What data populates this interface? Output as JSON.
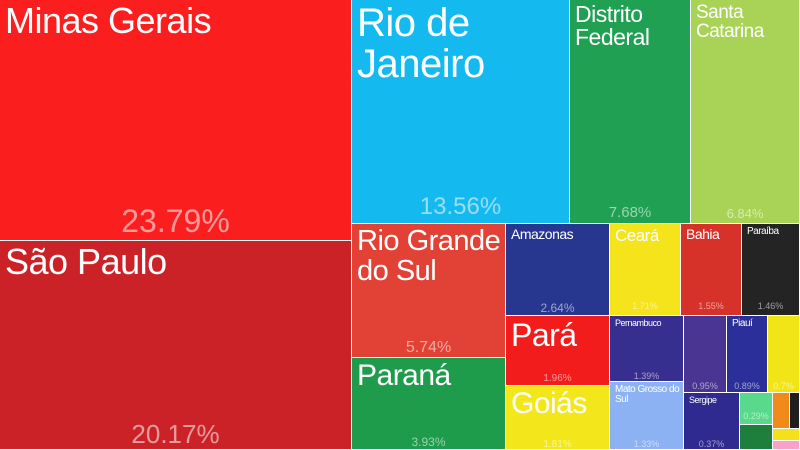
{
  "chart_data": {
    "type": "treemap",
    "title": "",
    "items": [
      {
        "name": "Minas Gerais",
        "label": "23.79%",
        "value": 23.79,
        "color": "#fa1e1e"
      },
      {
        "name": "São Paulo",
        "label": "20.17%",
        "value": 20.17,
        "color": "#cb2227"
      },
      {
        "name": "Rio de Janeiro",
        "label": "13.56%",
        "value": 13.56,
        "color": "#14b9f0"
      },
      {
        "name": "Distrito Federal",
        "label": "7.68%",
        "value": 7.68,
        "color": "#1fa052"
      },
      {
        "name": "Santa Catarina",
        "label": "6.84%",
        "value": 6.84,
        "color": "#a8d356"
      },
      {
        "name": "Rio Grande do Sul",
        "label": "5.74%",
        "value": 5.74,
        "color": "#e24235"
      },
      {
        "name": "Paraná",
        "label": "3.93%",
        "value": 3.93,
        "color": "#1e9c4b"
      },
      {
        "name": "Amazonas",
        "label": "2.64%",
        "value": 2.64,
        "color": "#27368e"
      },
      {
        "name": "Pará",
        "label": "1.96%",
        "value": 1.96,
        "color": "#f31c1c"
      },
      {
        "name": "Goiás",
        "label": "1.81%",
        "value": 1.81,
        "color": "#f3e71b"
      },
      {
        "name": "Ceará",
        "label": "1.71%",
        "value": 1.71,
        "color": "#f5e41b"
      },
      {
        "name": "Bahia",
        "label": "1.55%",
        "value": 1.55,
        "color": "#d6322a"
      },
      {
        "name": "Paraíba",
        "label": "1.46%",
        "value": 1.46,
        "color": "#242424"
      },
      {
        "name": "Pernambuco",
        "label": "1.39%",
        "value": 1.39,
        "color": "#362f8f"
      },
      {
        "name": "Mato Grosso do Sul",
        "label": "1.33%",
        "value": 1.33,
        "color": "#8cb2f3"
      },
      {
        "name": "",
        "label": "0.95%",
        "value": 0.95,
        "color": "#4a3692"
      },
      {
        "name": "Piauí",
        "label": "0.89%",
        "value": 0.89,
        "color": "#2a2f9a"
      },
      {
        "name": "",
        "label": "0.7%",
        "value": 0.7,
        "color": "#f2e517"
      },
      {
        "name": "Sergipe",
        "label": "0.37%",
        "value": 0.37,
        "color": "#2f2a8f"
      },
      {
        "name": "",
        "label": "0.29%",
        "value": 0.29,
        "color": "#59d98c"
      },
      {
        "name": "",
        "label": "",
        "value": null,
        "color": "#1e7e3c"
      },
      {
        "name": "",
        "label": "",
        "value": null,
        "color": "#f08a1a"
      },
      {
        "name": "",
        "label": "",
        "value": null,
        "color": "#1f1f1f"
      },
      {
        "name": "",
        "label": "",
        "value": null,
        "color": "#f3e21a"
      },
      {
        "name": "",
        "label": "",
        "value": null,
        "color": "#f5a3c7"
      }
    ]
  }
}
